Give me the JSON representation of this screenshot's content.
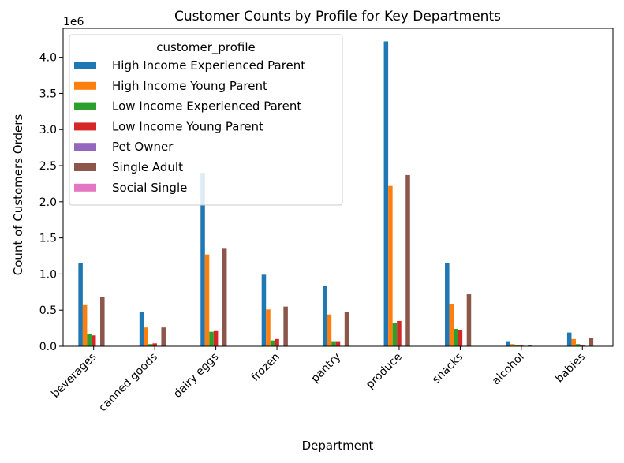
{
  "chart_data": {
    "type": "bar",
    "title": "Customer Counts by Profile for Key Departments",
    "xlabel": "Department",
    "ylabel": "Count of Customers Orders",
    "y_multiplier_label": "1e6",
    "ylim": [
      0,
      4.4
    ],
    "yticks": [
      0.0,
      0.5,
      1.0,
      1.5,
      2.0,
      2.5,
      3.0,
      3.5,
      4.0
    ],
    "ytick_labels": [
      "0.0",
      "0.5",
      "1.0",
      "1.5",
      "2.0",
      "2.5",
      "3.0",
      "3.5",
      "4.0"
    ],
    "grid": false,
    "legend_title": "customer_profile",
    "legend_position": "top-left",
    "categories": [
      "beverages",
      "canned goods",
      "dairy eggs",
      "frozen",
      "pantry",
      "produce",
      "snacks",
      "alcohol",
      "babies"
    ],
    "series": [
      {
        "name": "High Income Experienced Parent",
        "color": "#1f77b4",
        "values": [
          1.15,
          0.48,
          2.4,
          0.99,
          0.84,
          4.22,
          1.15,
          0.07,
          0.19
        ]
      },
      {
        "name": "High Income Young Parent",
        "color": "#ff7f0e",
        "values": [
          0.57,
          0.26,
          1.27,
          0.51,
          0.44,
          2.22,
          0.58,
          0.03,
          0.1
        ]
      },
      {
        "name": "Low Income Experienced Parent",
        "color": "#2ca02c",
        "values": [
          0.17,
          0.03,
          0.2,
          0.08,
          0.07,
          0.32,
          0.24,
          0.01,
          0.03
        ]
      },
      {
        "name": "Low Income Young Parent",
        "color": "#d62728",
        "values": [
          0.15,
          0.04,
          0.21,
          0.1,
          0.07,
          0.35,
          0.22,
          0.01,
          0.01
        ]
      },
      {
        "name": "Pet Owner",
        "color": "#9467bd",
        "values": [
          0.003,
          0.001,
          0.004,
          0.002,
          0.002,
          0.006,
          0.003,
          0.0005,
          0.0005
        ]
      },
      {
        "name": "Single Adult",
        "color": "#8c564b",
        "values": [
          0.68,
          0.26,
          1.35,
          0.55,
          0.47,
          2.37,
          0.72,
          0.02,
          0.11
        ]
      },
      {
        "name": "Social Single",
        "color": "#e377c2",
        "values": [
          0.002,
          0.001,
          0.003,
          0.001,
          0.001,
          0.004,
          0.002,
          0.004,
          0.0005
        ]
      }
    ]
  }
}
